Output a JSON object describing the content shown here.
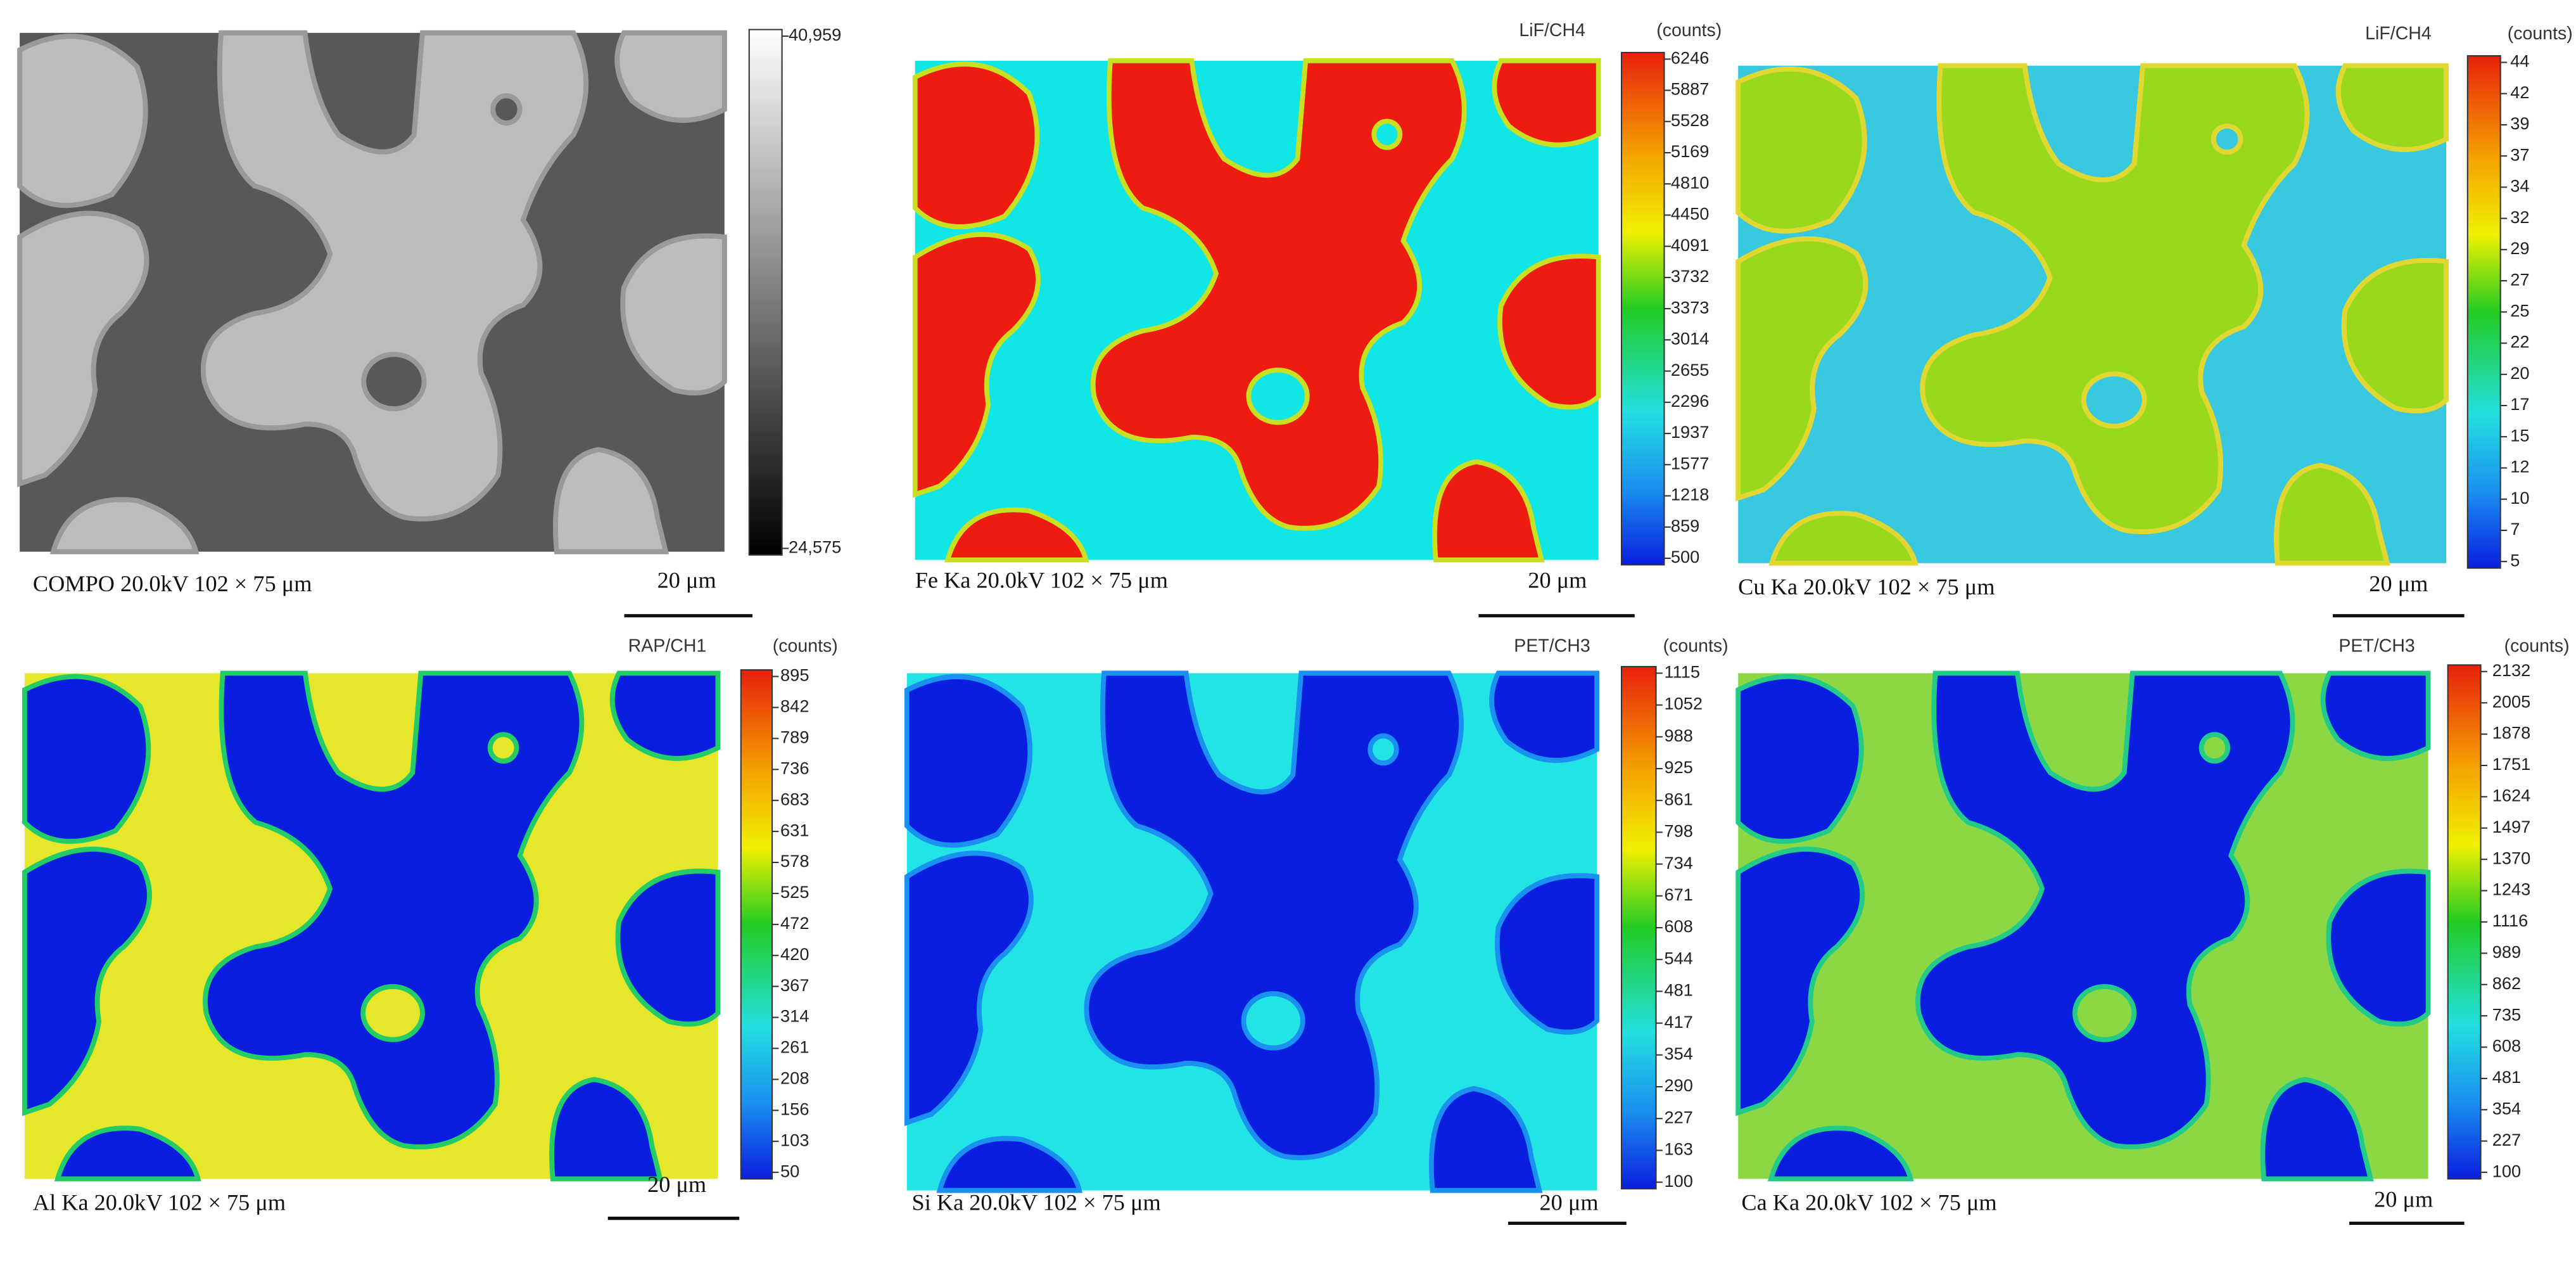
{
  "panels": [
    {
      "caption": "COMPO 20.0kV 102 × 75 μm",
      "scale_bar": "20 μm",
      "ticks": [
        "40,959",
        "24,575"
      ]
    },
    {
      "caption": "Fe Ka 20.0kV 102 × 75 μm",
      "scale_bar": "20 μm",
      "channel": "LiF/CH4",
      "unit": "(counts)",
      "ticks": [
        6246,
        5887,
        5528,
        5169,
        4810,
        4450,
        4091,
        3732,
        3373,
        3014,
        2655,
        2296,
        1937,
        1577,
        1218,
        859,
        500
      ]
    },
    {
      "caption": "Cu Ka 20.0kV 102 × 75 μm",
      "scale_bar": "20 μm",
      "channel": "LiF/CH4",
      "unit": "(counts)",
      "ticks": [
        44,
        42,
        39,
        37,
        34,
        32,
        29,
        27,
        25,
        22,
        20,
        17,
        15,
        12,
        10,
        7,
        5
      ]
    },
    {
      "caption": "Al Ka 20.0kV 102 × 75 μm",
      "scale_bar": "20 μm",
      "channel": "RAP/CH1",
      "unit": "(counts)",
      "ticks": [
        895,
        842,
        789,
        736,
        683,
        631,
        578,
        525,
        472,
        420,
        367,
        314,
        261,
        208,
        156,
        103,
        50
      ]
    },
    {
      "caption": "Si Ka 20.0kV 102 × 75 μm",
      "scale_bar": "20 μm",
      "channel": "PET/CH3",
      "unit": "(counts)",
      "ticks": [
        1115,
        1052,
        988,
        925,
        861,
        798,
        734,
        671,
        608,
        544,
        481,
        417,
        354,
        290,
        227,
        163,
        100
      ]
    },
    {
      "caption": "Ca Ka 20.0kV 102 × 75 μm",
      "scale_bar": "20 μm",
      "channel": "PET/CH3",
      "unit": "(counts)",
      "ticks": [
        2132,
        2005,
        1878,
        1751,
        1624,
        1497,
        1370,
        1243,
        1116,
        989,
        862,
        735,
        608,
        481,
        354,
        227,
        100
      ]
    }
  ]
}
